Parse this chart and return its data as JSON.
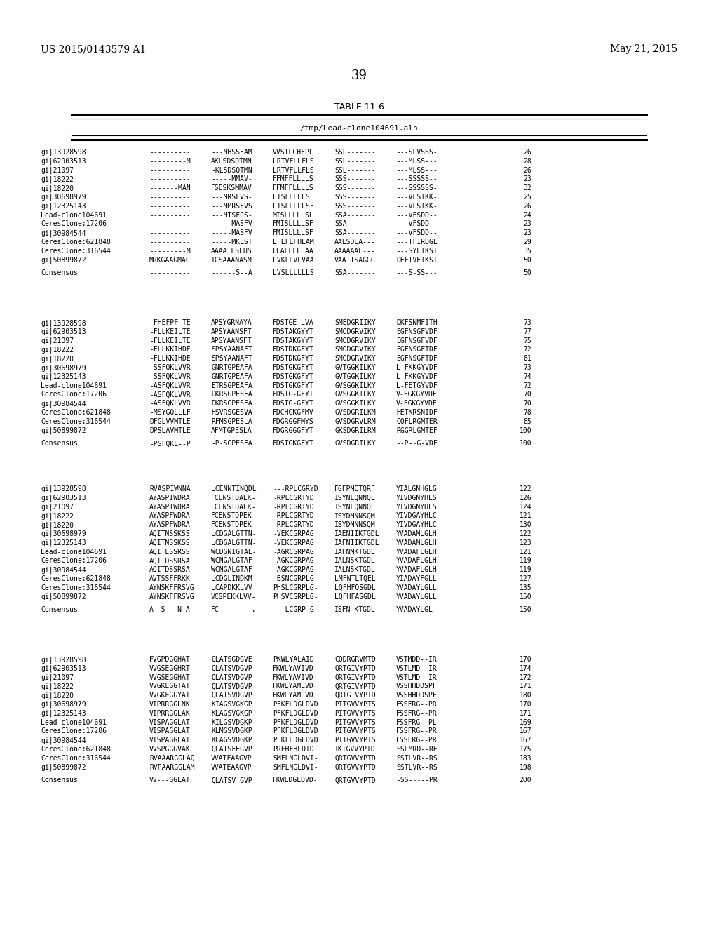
{
  "page_number": "39",
  "left_header": "US 2015/0143579 A1",
  "right_header": "May 21, 2015",
  "table_title": "TABLE 11-6",
  "subtitle": "/tmp/Lead-clone104691.aln",
  "blocks": [
    {
      "lines": [
        [
          "gi|13928598",
          "----------",
          "---MHSSEAM",
          "VVSTLCHFPL",
          "SSL-------",
          "---SLVSSS-",
          "26"
        ],
        [
          "gi|62903513",
          "---------M",
          "AKLSDSQTMN",
          "LRTVFLLFLS",
          "SSL-------",
          "---MLSS---",
          "28"
        ],
        [
          "gi|21097",
          "----------",
          "-KLSDSQTMN",
          "LRTVFLLFLS",
          "SSL-------",
          "---MLSS---",
          "26"
        ],
        [
          "gi|18222",
          "----------",
          "-----MMAV-",
          "FFMFFLLLLS",
          "SSS-------",
          "---SSSSS--",
          "23"
        ],
        [
          "gi|18220",
          "-------MAN",
          "FSESKSMMAV",
          "FFMFFLLLLS",
          "SSS-------",
          "---SSSSSS-",
          "32"
        ],
        [
          "gi|30698979",
          "----------",
          "---MRSFVS-",
          "LISLLLLLSF",
          "SSS-------",
          "---VLSTKK-",
          "25"
        ],
        [
          "gi|12325143",
          "----------",
          "---MMRSFVS",
          "LISLLLLLSF",
          "SSS-------",
          "---VLSTKK-",
          "26"
        ],
        [
          "Lead-clone104691",
          "----------",
          "---MTSFCS-",
          "MISLLLLLSL",
          "SSA-------",
          "---VFSDD--",
          "24"
        ],
        [
          "CeresClone:17206",
          "----------",
          "-----MASFV",
          "FMISLLLLSF",
          "SSA-------",
          "---VFSDD--",
          "23"
        ],
        [
          "gi|30984544",
          "----------",
          "-----MASFV",
          "FMISLLLLSF",
          "SSA-------",
          "---VFSDD--",
          "23"
        ],
        [
          "CeresClone:621848",
          "----------",
          "-----MKLST",
          "LFLFLFHLAM",
          "AALSDEA---",
          "---TFIRDGL",
          "29"
        ],
        [
          "CeresClone:316544",
          "---------M",
          "AAAATFSLHS",
          "FLALLLLLAA",
          "AAAAAAL---",
          "---SYETKSI",
          "35"
        ],
        [
          "gi|50899872",
          "MRKGAAGMAC",
          "TCSAAANASM",
          "LVKLLVLVAA",
          "VAATTSAGGG",
          "DEFTVETKSI",
          "50"
        ]
      ],
      "consensus": [
        "Consensus",
        "----------",
        "------S--A",
        "LVSLLLLLLS",
        "SSA-------",
        "---S-SS---",
        "50"
      ]
    },
    {
      "lines": [
        [
          "gi|13928598",
          "-FHEFPF-TE",
          "APSYGRNAYA",
          "FDSTGE-LVA",
          "SMEDGRIIKY",
          "DKFSNMFITH",
          "73"
        ],
        [
          "gi|62903513",
          "-FLLKEILTE",
          "APSYAANSFT",
          "FDSTAKGYYT",
          "SMODGRVIKY",
          "EGFNSGFVDF",
          "77"
        ],
        [
          "gi|21097",
          "-FLLKEILTE",
          "APSYAANSFT",
          "FDSTAKGYYT",
          "SMODGRVIKY",
          "EGFNSGFVDF",
          "75"
        ],
        [
          "gi|18222",
          "-FLLKKIHDE",
          "SPSYAANAFT",
          "FDSTDKGFYT",
          "SMODGRVIKY",
          "EGFNSGFTDF",
          "72"
        ],
        [
          "gi|18220",
          "-FLLKKIHDE",
          "SPSYAANAFT",
          "FDSTDKGFYT",
          "SMODGRVIKY",
          "EGFNSGFTDF",
          "81"
        ],
        [
          "gi|30698979",
          "-SSFQKLVVR",
          "GNRTGPEAFA",
          "FDSTGKGFYT",
          "GVTGGKILKY",
          "L-FKKGYVDF",
          "73"
        ],
        [
          "gi|12325143",
          "-SSFQKLVVR",
          "GNRTGPEAFA",
          "FDSTGKGFYT",
          "GVTGGKILKY",
          "L-FKKGYVDF",
          "74"
        ],
        [
          "Lead-clone104691",
          "-ASFQKLVVR",
          "ETRSGPEAFA",
          "FDSTGKGFYT",
          "GVSGGKILKY",
          "L-FETGYVDF",
          "72"
        ],
        [
          "CeresClone:17206",
          "-ASFQKLVVR",
          "DKRSGPESFA",
          "FDSTG-GFYT",
          "GVSGGKILKY",
          "V-FGKGYVDF",
          "70"
        ],
        [
          "gi|30984544",
          "-ASFQKLVVR",
          "DKRSGPESFA",
          "FDSTG-GFYT",
          "GVSGGKILKY",
          "V-FGKGYVDF",
          "70"
        ],
        [
          "CeresClone:621848",
          "-MSYGQLLLF",
          "HSVRSGESVA",
          "FDCHGKGFMV",
          "GVSDGRILKM",
          "HETKRSNIDF",
          "78"
        ],
        [
          "CeresClone:316544",
          "DFGLVVMTLE",
          "RFMSGPESLA",
          "FDGRGGFMYS",
          "GVSDGRVLRM",
          "QQFLRGMTER",
          "85"
        ],
        [
          "gi|50899872",
          "DPSLAVMTLE",
          "AFMTGPESLA",
          "FDGRGGGFYT",
          "GKSDGRILRM",
          "RGGRLGMTEF",
          "100"
        ]
      ],
      "consensus": [
        "Consensus",
        "-PSFQKL--P",
        "-P-SGPESFA",
        "FDSTGKGFYT",
        "GVSDGRILKY",
        "--P--G-VDF",
        "100"
      ]
    },
    {
      "lines": [
        [
          "gi|13928598",
          "RVASPIWNNA",
          "LCENNTINQDL",
          "---RPLCGRYD",
          "FGFPMETQRF",
          "YIALGNHGLG",
          "122"
        ],
        [
          "gi|62903513",
          "AYASPIWDRA",
          "FCENSTDAEK-",
          "-RPLCGRTYD",
          "ISYNLQNNQL",
          "YIVDGNYHLS",
          "126"
        ],
        [
          "gi|21097",
          "AYASPIWDRA",
          "FCENSTDAEK-",
          "-RPLCGRTYD",
          "ISYNLQNNQL",
          "YIVDGNYHLS",
          "124"
        ],
        [
          "gi|18222",
          "AYASPFWDRA",
          "FCENSTDPEK-",
          "-RPLCGRTYD",
          "ISYDMNNSQM",
          "YIVDGAYHLC",
          "121"
        ],
        [
          "gi|18220",
          "AYASPFWDRA",
          "FCENSTDPEK-",
          "-RPLCGRTYD",
          "ISYDMNNSQM",
          "YIVDGAYHLC",
          "130"
        ],
        [
          "gi|30698979",
          "AQITNSSKSS",
          "LCDGALGTTN-",
          "-VEKCGRPAG",
          "IAENIIKTGDL",
          "YVADAMLGLH",
          "122"
        ],
        [
          "gi|12325143",
          "AQITNSSKSS",
          "LCDGALGTTN-",
          "-VEKCGRPAG",
          "IAFNIIKTGDL",
          "YVADAMLGLH",
          "123"
        ],
        [
          "Lead-clone104691",
          "AQITESSRSS",
          "WCDGNIGTAL-",
          "-AGRCGRPAG",
          "IAFNMKTGDL",
          "YVADAFLGLH",
          "121"
        ],
        [
          "CeresClone:17206",
          "AQITDSSRSA",
          "WCNGALGTAF-",
          "-AGKCGRPAG",
          "IALNSKTGDL",
          "YVADAFLGLH",
          "119"
        ],
        [
          "gi|30984544",
          "AQITDSSRSA",
          "WCNGALGTAF-",
          "-AGKCGRPAG",
          "IALNSKTGDL",
          "YVADAFLGLH",
          "119"
        ],
        [
          "CeresClone:621848",
          "AVTSSFFRKK-",
          "LCDGLINDKM",
          "-BSNCGRPLG",
          "LMFNTLTQEL",
          "YIADAYFGLL",
          "127"
        ],
        [
          "CeresClone:316544",
          "AYNSKFFRSVG",
          "LCAPDKKLVV",
          "PHSLCGRPLG-",
          "LQFHFQSGDL",
          "YVADAYLGLL",
          "135"
        ],
        [
          "gi|50899872",
          "AYNSKFFRSVG",
          "VCSPEKKLVV-",
          "PHSVCGRPLG-",
          "LQFHFASGDL",
          "YVADAYLGLL",
          "150"
        ]
      ],
      "consensus": [
        "Consensus",
        "A--S---N-A",
        "FC--------.",
        "---LCGRP-G",
        "ISFN-KTGDL",
        "YVADAYLGL-",
        "150"
      ]
    },
    {
      "lines": [
        [
          "gi|13928598",
          "FVGPDGGHAT",
          "QLATSGDGVE",
          "PKWLYALAID",
          "CQDRGRVMTD",
          "VSTMDD--IR",
          "170"
        ],
        [
          "gi|62903513",
          "VVGSEGGHRT",
          "QLATSVDGVP",
          "FKWLYAVIVD",
          "QRTGIVYPTD",
          "VSTLMD--IR",
          "174"
        ],
        [
          "gi|21097",
          "VVGSEGGHAT",
          "QLATSVDGVP",
          "FKWLYAVIVD",
          "QRTGIVYPTD",
          "VSTLMD--IR",
          "172"
        ],
        [
          "gi|18222",
          "VVGKEGGTAT",
          "QLATSVDGVP",
          "FKWLYAMLVD",
          "QRTGIVYPTD",
          "VSSHHDDSPF",
          "171"
        ],
        [
          "gi|18220",
          "VVGKEGGYAT",
          "QLATSVDGVP",
          "FKWLYAMLVD",
          "QRTGIVYPTD",
          "VSSHHDDSPF",
          "180"
        ],
        [
          "gi|30698979",
          "VIPRRGGLNK",
          "KIAGSVGKGP",
          "PFKFLDGLDVD",
          "PITGVVYPTS",
          "FSSFRG--PR",
          "170"
        ],
        [
          "gi|12325143",
          "VIPRRGGLAK",
          "KLAGSVGKGP",
          "PFKFLDGLDVD",
          "PITGVVYPTS",
          "FSSFRG--PR",
          "171"
        ],
        [
          "Lead-clone104691",
          "VISPAGGLAT",
          "KILGSVDGKP",
          "PFKFLDGLDVD",
          "PITGVVYPTS",
          "FSSFRG--PL",
          "169"
        ],
        [
          "CeresClone:17206",
          "VISPAGGLAT",
          "KLMGSVDGKP",
          "PFKFLDGLDVD",
          "PITGVVYPTS",
          "FSSFRG--PR",
          "167"
        ],
        [
          "gi|30984544",
          "VISPAGGLAT",
          "KLAGSVDGKP",
          "PFKFLDGLDVD",
          "PITGVVYPTS",
          "FSSFRG--PR",
          "167"
        ],
        [
          "CeresClone:621848",
          "VVSPGGGVAK",
          "QLATSFEGVP",
          "PRFHFHLDID",
          "TKTGVVYPTD",
          "SSLMRD--RE",
          "175"
        ],
        [
          "CeresClone:316544",
          "RVAAARGGLAQ",
          "VVATFAAGVP",
          "SMFLNGLDVI-",
          "QRTGVVYPTD",
          "SSTLVR--RS",
          "183"
        ],
        [
          "gi|50899872",
          "RVPAARGGLAM",
          "VVATEAAGVP",
          "SMFLNGLDVI-",
          "QRTGVVYPTD",
          "SSTLVR--RS",
          "198"
        ]
      ],
      "consensus": [
        "Consensus",
        "VV---GGLAT",
        "QLATSV-GVP",
        "FKWLDGLDVD-",
        "QRTGVVYPTD",
        "-SS-----PR",
        "200"
      ]
    }
  ]
}
